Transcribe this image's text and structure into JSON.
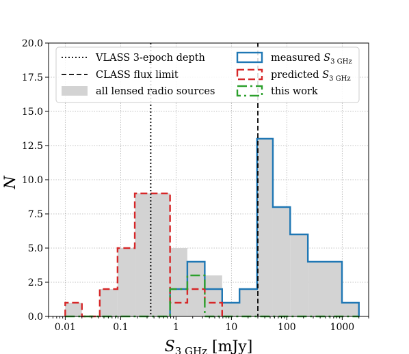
{
  "chart_data": {
    "type": "histogram",
    "x_scale": "log",
    "xlim": [
      0.005,
      3000
    ],
    "ylim": [
      0,
      20
    ],
    "grid": true,
    "xlabel": {
      "main": "S",
      "sub": "3 GHz",
      "unit": " [mJy]"
    },
    "ylabel": "N",
    "x_tick_labels": [
      {
        "value": 0.01,
        "label": "0.01"
      },
      {
        "value": 0.1,
        "label": "0.1"
      },
      {
        "value": 1,
        "label": "1"
      },
      {
        "value": 10,
        "label": "10"
      },
      {
        "value": 100,
        "label": "100"
      },
      {
        "value": 1000,
        "label": "1000"
      }
    ],
    "y_ticks": [
      0.0,
      2.5,
      5.0,
      7.5,
      10.0,
      12.5,
      15.0,
      17.5,
      20.0
    ],
    "y_tick_labels": [
      "0.0",
      "2.5",
      "5.0",
      "7.5",
      "10.0",
      "12.5",
      "15.0",
      "17.5",
      "20.0"
    ],
    "vlines": [
      {
        "name": "VLASS 3-epoch depth",
        "x": 0.35,
        "style": "dotted",
        "color": "#000000"
      },
      {
        "name": "CLASS flux limit",
        "x": 30,
        "style": "dashed",
        "color": "#000000"
      }
    ],
    "series": [
      {
        "name": "all lensed radio sources",
        "style": "filled",
        "color": "#d3d3d3",
        "edges": [
          0.01,
          0.02,
          0.042,
          0.088,
          0.18,
          0.38,
          0.78,
          1.6,
          3.3,
          6.8,
          14,
          29,
          56,
          115,
          240,
          990,
          2000
        ],
        "values": [
          1,
          0,
          2,
          5,
          9,
          9,
          5,
          4,
          3,
          1,
          2,
          13,
          8,
          6,
          4,
          1
        ]
      },
      {
        "name": "measured S3 GHz",
        "legend": {
          "main": "measured S",
          "sub": "3 GHz"
        },
        "style": "step",
        "dash": "",
        "color": "#1f77b4",
        "edges": [
          0.78,
          1.6,
          3.3,
          6.8,
          14,
          29,
          56,
          115,
          240,
          990,
          2000
        ],
        "values": [
          2,
          4,
          2,
          1,
          2,
          13,
          8,
          6,
          4,
          1
        ]
      },
      {
        "name": "predicted S3 GHz",
        "legend": {
          "main": "predicted S",
          "sub": "3 GHz"
        },
        "style": "step",
        "dash": "10 5",
        "color": "#d62728",
        "edges": [
          0.01,
          0.02,
          0.042,
          0.088,
          0.18,
          0.38,
          0.78,
          1.6,
          3.3,
          6.8
        ],
        "values": [
          1,
          0,
          2,
          5,
          9,
          9,
          1,
          2,
          1
        ]
      },
      {
        "name": "this work",
        "style": "step",
        "dash": "14 5 3 5",
        "color": "#2ca02c",
        "edges": [
          0.01,
          0.02,
          0.042,
          0.088,
          0.18,
          0.38,
          0.78,
          1.6,
          3.3,
          6.8,
          14,
          29,
          56,
          115,
          240,
          990,
          2000
        ],
        "values": [
          0,
          0,
          0,
          0,
          0,
          0,
          2,
          3,
          0,
          0,
          0,
          0,
          0,
          0,
          0,
          0
        ]
      }
    ],
    "legend": {
      "position": "top",
      "columns": [
        [
          {
            "ref": "vline",
            "index": 0,
            "text": "VLASS 3-epoch depth"
          },
          {
            "ref": "vline",
            "index": 1,
            "text": "CLASS flux limit"
          },
          {
            "ref": "series",
            "index": 0,
            "text": "all lensed radio sources"
          }
        ],
        [
          {
            "ref": "series",
            "index": 1,
            "main": "measured S",
            "sub": "3 GHz"
          },
          {
            "ref": "series",
            "index": 2,
            "main": "predicted S",
            "sub": "3 GHz"
          },
          {
            "ref": "series",
            "index": 3,
            "text": "this work"
          }
        ]
      ]
    }
  }
}
